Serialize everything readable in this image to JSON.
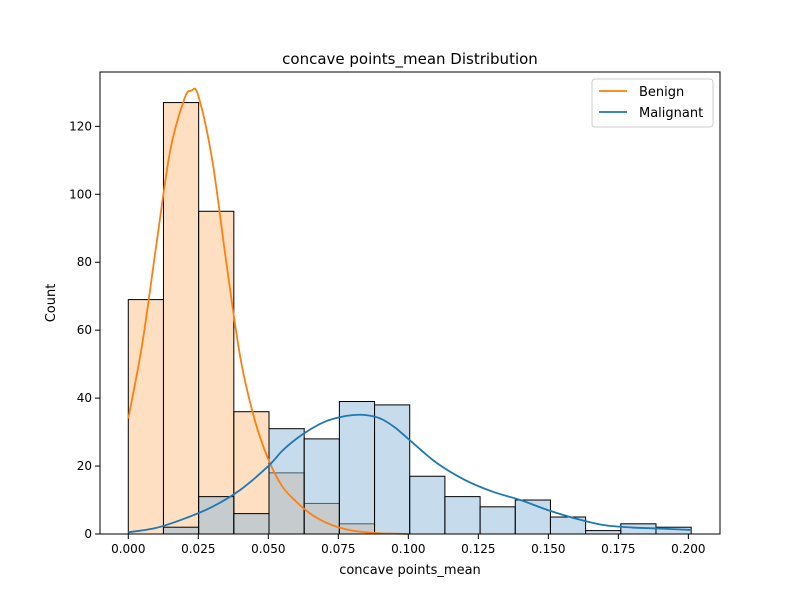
{
  "chart_data": {
    "type": "histogram",
    "title": "concave points_mean Distribution",
    "xlabel": "concave points_mean",
    "ylabel": "Count",
    "xlim": [
      -0.0101,
      0.2113
    ],
    "ylim": [
      0,
      136
    ],
    "x_ticks": [
      0.0,
      0.025,
      0.05,
      0.075,
      0.1,
      0.125,
      0.15,
      0.175,
      0.2
    ],
    "x_tick_labels": [
      "0.000",
      "0.025",
      "0.050",
      "0.075",
      "0.100",
      "0.125",
      "0.150",
      "0.175",
      "0.200"
    ],
    "y_ticks": [
      0,
      20,
      40,
      60,
      80,
      100,
      120
    ],
    "y_tick_labels": [
      "0",
      "20",
      "40",
      "60",
      "80",
      "100",
      "120"
    ],
    "bins": [
      0.0,
      0.01256,
      0.02513,
      0.03769,
      0.05025,
      0.06281,
      0.07538,
      0.08794,
      0.1005,
      0.11306,
      0.12563,
      0.13819,
      0.15075,
      0.16331,
      0.17588,
      0.18844,
      0.201
    ],
    "legend": {
      "placement": "upper right",
      "entries": [
        "Benign",
        "Malignant"
      ]
    },
    "series": [
      {
        "name": "Benign",
        "color": "#ff7f0e",
        "fill": "#ffbf86",
        "counts": [
          69,
          127,
          95,
          36,
          18,
          9,
          3,
          0,
          0,
          0,
          0,
          0,
          0,
          0,
          0,
          0
        ],
        "kde": {
          "x": [
            0.0,
            0.005,
            0.01,
            0.015,
            0.02,
            0.0225,
            0.025,
            0.03,
            0.035,
            0.04,
            0.045,
            0.05,
            0.055,
            0.06,
            0.065,
            0.07,
            0.075,
            0.08,
            0.085,
            0.09,
            0.095,
            0.1
          ],
          "y": [
            34,
            56,
            85,
            113,
            128,
            130.5,
            129,
            110,
            80,
            52,
            34,
            22,
            14,
            9.5,
            6,
            3.6,
            2,
            1,
            0.5,
            0.2,
            0.1,
            0
          ]
        }
      },
      {
        "name": "Malignant",
        "color": "#1f77b4",
        "fill": "#8ebad9",
        "counts": [
          0,
          2,
          11,
          6,
          31,
          28,
          39,
          38,
          17,
          11,
          8,
          10,
          5,
          1,
          3,
          2
        ],
        "kde": {
          "x": [
            0.0,
            0.01,
            0.02,
            0.03,
            0.04,
            0.05,
            0.055,
            0.06,
            0.065,
            0.07,
            0.075,
            0.08,
            0.085,
            0.09,
            0.095,
            0.1,
            0.11,
            0.12,
            0.13,
            0.14,
            0.15,
            0.16,
            0.17,
            0.18,
            0.19,
            0.201
          ],
          "y": [
            0.5,
            1.8,
            4.5,
            8,
            13,
            20,
            24.5,
            28,
            30.8,
            33,
            34.3,
            35,
            35,
            34,
            31.5,
            28,
            21,
            16,
            12.5,
            10,
            7,
            4.5,
            2.6,
            1.9,
            1.6,
            1.2
          ]
        }
      }
    ]
  }
}
